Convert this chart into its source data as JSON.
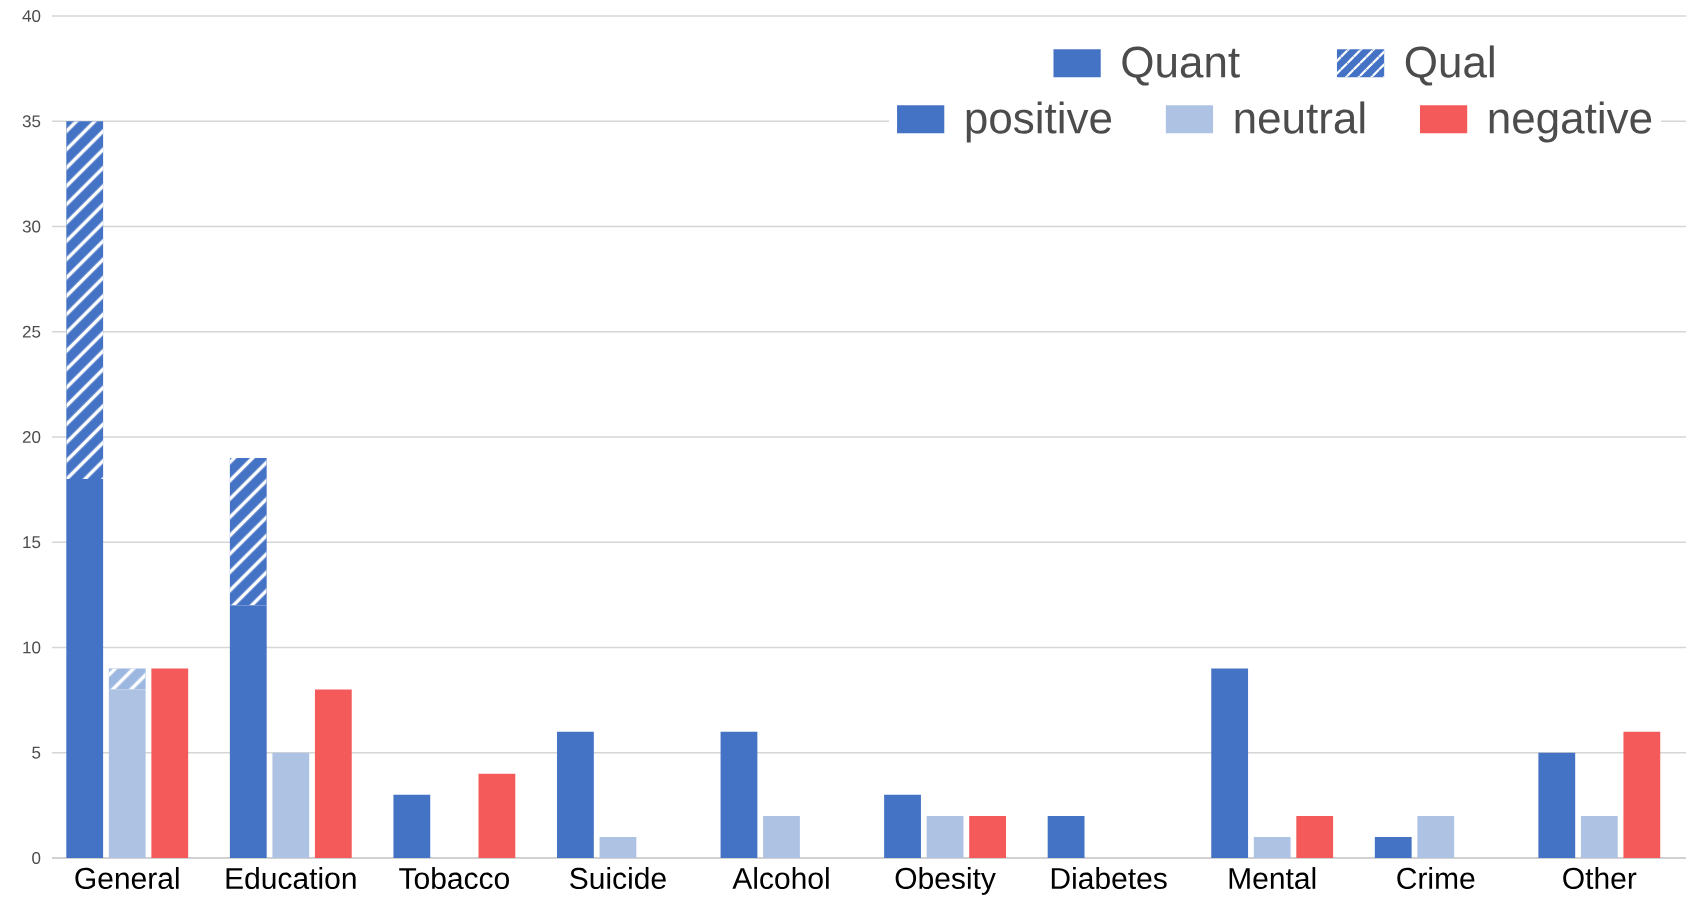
{
  "chart_data": {
    "type": "bar",
    "categories": [
      "General",
      "Education",
      "Tobacco",
      "Suicide",
      "Alcohol",
      "Obesity",
      "Diabetes",
      "Mental",
      "Crime",
      "Other"
    ],
    "series": [
      {
        "name": "positive",
        "color": "#4472c4",
        "values": [
          18,
          12,
          3,
          6,
          6,
          3,
          2,
          9,
          1,
          5
        ]
      },
      {
        "name": "Qual",
        "color": "#4472c4",
        "values": [
          17,
          7,
          null,
          null,
          null,
          null,
          null,
          null,
          null,
          null
        ],
        "base": [
          18,
          12,
          null,
          null,
          null,
          null,
          null,
          null,
          null,
          null
        ]
      },
      {
        "name": "neutral",
        "color": "#aec3e4",
        "values": [
          8,
          5,
          0,
          1,
          2,
          2,
          0,
          1,
          2,
          2
        ]
      },
      {
        "color": "#9db8e0",
        "values": [
          1,
          null,
          null,
          null,
          null,
          null,
          null,
          null,
          null,
          null
        ],
        "base": [
          8,
          null,
          null,
          null,
          null,
          null,
          null,
          null,
          null,
          null
        ]
      },
      {
        "name": "negative",
        "color": "#f55a5a",
        "values": [
          9,
          8,
          4,
          0,
          0,
          2,
          0,
          2,
          0,
          6
        ]
      }
    ],
    "annotations": [
      "Quant"
    ],
    "ylim": [
      0,
      40
    ],
    "yticks": [
      0,
      5,
      10,
      15,
      20,
      25,
      30,
      35,
      40
    ],
    "grid": "y",
    "legend": "top right"
  }
}
